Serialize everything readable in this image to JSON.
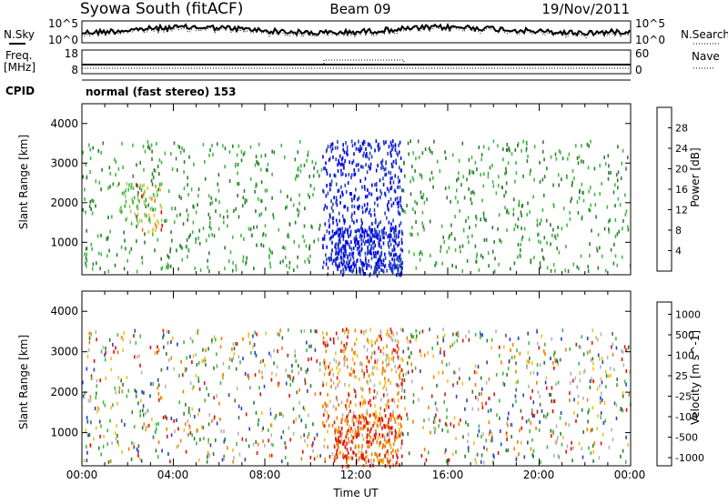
{
  "header": {
    "station": "Syowa South (fitACF)",
    "beam": "Beam 09",
    "date": "19/Nov/2011"
  },
  "noise_panel": {
    "left_label": "N.Sky",
    "left_ticks": [
      "10^5",
      "10^0"
    ],
    "right_label": "N.Search",
    "right_ticks": [
      "10^5",
      "10^0"
    ]
  },
  "freq_panel": {
    "left_label_1": "Freq.",
    "left_label_2": "[MHz]",
    "left_ticks": [
      "18",
      "8"
    ],
    "right_label": "Nave",
    "right_ticks": [
      "60",
      "0"
    ]
  },
  "cpid": {
    "label": "CPID",
    "value": "normal (fast stereo) 153"
  },
  "colors": {
    "axis": "#000000",
    "scale": [
      "#0000ee",
      "#2244bb",
      "#2e7d32",
      "#43b843",
      "#a0d060",
      "#f0c020",
      "#f08000",
      "#e01010"
    ],
    "ground_scatter": "#b4b4b4"
  },
  "chart_data": [
    {
      "type": "scatter",
      "name": "power",
      "ylabel": "Slant Range [km]",
      "ylim": [
        180,
        4500
      ],
      "yticks": [
        "1000",
        "2000",
        "3000",
        "4000"
      ],
      "xlim_hours": [
        0,
        24
      ],
      "colorbar": {
        "label": "Power [dB]",
        "range": [
          0,
          32
        ],
        "ticks": [
          "4",
          "8",
          "12",
          "16",
          "20",
          "24",
          "28"
        ],
        "colors": [
          "#0000ee",
          "#2244bb",
          "#2e7d32",
          "#43b843",
          "#a0d060",
          "#f0c020",
          "#f08000",
          "#e01010"
        ]
      },
      "regions": [
        {
          "t": [
            0,
            10.5
          ],
          "r": [
            300,
            3600
          ],
          "c": [
            2,
            3
          ],
          "n": 430
        },
        {
          "t": [
            10.5,
            14
          ],
          "r": [
            200,
            3600
          ],
          "c": [
            0,
            1
          ],
          "n": 520
        },
        {
          "t": [
            11,
            14
          ],
          "r": [
            300,
            1400
          ],
          "c": [
            0,
            1
          ],
          "n": 260
        },
        {
          "t": [
            14,
            24
          ],
          "r": [
            300,
            3600
          ],
          "c": [
            2,
            3
          ],
          "n": 420
        },
        {
          "t": [
            2.3,
            3.5
          ],
          "r": [
            1300,
            2500
          ],
          "c": [
            4,
            7
          ],
          "n": 40
        },
        {
          "t": [
            1.5,
            3.5
          ],
          "r": [
            1600,
            2600
          ],
          "c": [
            3,
            4
          ],
          "n": 40
        }
      ]
    },
    {
      "type": "scatter",
      "name": "velocity",
      "ylabel": "Slant Range [km]",
      "ylim": [
        180,
        4500
      ],
      "yticks": [
        "1000",
        "2000",
        "3000",
        "4000"
      ],
      "xlim_hours": [
        0,
        24
      ],
      "xticks": [
        "00:00",
        "04:00",
        "08:00",
        "12:00",
        "16:00",
        "20:00",
        "00:00"
      ],
      "xlabel": "Time UT",
      "colorbar": {
        "label": "Velocity [m s^-1]",
        "range": [
          -1500,
          1500
        ],
        "ticks": [
          "1000",
          "500",
          "100",
          "25",
          "-25",
          "-100",
          "-500",
          "-1000"
        ],
        "colors": [
          "#2244bb",
          "#2e7d32",
          "#43b843",
          "#b4b4b4",
          "#f0c020",
          "#f08000",
          "#e01010"
        ]
      },
      "regions": [
        {
          "t": [
            0,
            10.5
          ],
          "r": [
            300,
            3600
          ],
          "c": [
            0,
            6
          ],
          "n": 500
        },
        {
          "t": [
            10.5,
            14
          ],
          "r": [
            300,
            3600
          ],
          "c": [
            3,
            6
          ],
          "n": 460
        },
        {
          "t": [
            11,
            14
          ],
          "r": [
            200,
            1500
          ],
          "c": [
            5,
            6
          ],
          "n": 200
        },
        {
          "t": [
            14,
            24
          ],
          "r": [
            300,
            3600
          ],
          "c": [
            0,
            6
          ],
          "n": 500
        }
      ]
    }
  ]
}
